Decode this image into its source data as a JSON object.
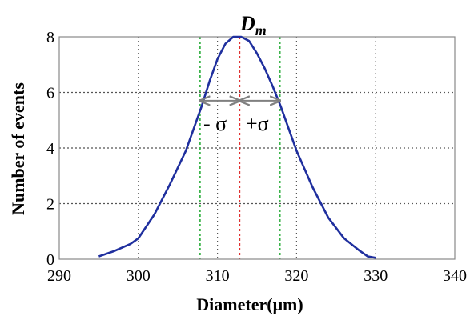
{
  "chart_data": {
    "type": "line",
    "title": "",
    "xlabel": "Diameter(μm)",
    "ylabel": "Number of events",
    "xlim": [
      290,
      340
    ],
    "ylim": [
      0,
      8
    ],
    "x_ticks": [
      290,
      300,
      310,
      320,
      330,
      340
    ],
    "y_ticks": [
      0,
      2,
      4,
      6,
      8
    ],
    "grid": true,
    "series": [
      {
        "color": "#1f2f9e",
        "x": [
          295,
          297,
          299,
          300,
          302,
          304,
          306,
          308,
          309,
          310,
          311,
          312,
          313,
          314,
          315,
          316,
          317,
          318,
          319,
          320,
          322,
          324,
          326,
          328,
          329,
          330
        ],
        "y": [
          0.1,
          0.3,
          0.55,
          0.75,
          1.6,
          2.7,
          3.9,
          5.5,
          6.4,
          7.2,
          7.75,
          8.0,
          8.0,
          7.85,
          7.4,
          6.85,
          6.2,
          5.5,
          4.7,
          3.9,
          2.6,
          1.5,
          0.75,
          0.3,
          0.1,
          0.05
        ]
      }
    ],
    "reference_lines": [
      {
        "x": 307.8,
        "color": "#3cb44b",
        "style": "dotted"
      },
      {
        "x": 312.8,
        "color": "#e03030",
        "style": "dotted"
      },
      {
        "x": 317.9,
        "color": "#3cb44b",
        "style": "dotted"
      }
    ],
    "arrows": {
      "y": 5.7,
      "left_from": 312.8,
      "left_to": 307.8,
      "right_from": 312.8,
      "right_to": 317.9,
      "color": "#808080"
    },
    "annotations": {
      "mean_label": "Dm",
      "minus_sigma": "- σ",
      "plus_sigma": "+σ"
    }
  }
}
